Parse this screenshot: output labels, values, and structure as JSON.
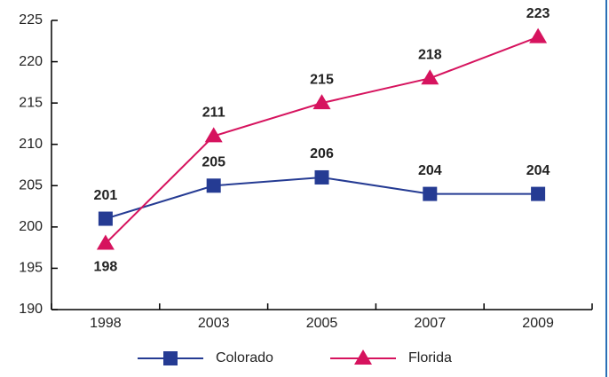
{
  "chart_data": {
    "type": "line",
    "categories": [
      "1998",
      "2003",
      "2005",
      "2007",
      "2009"
    ],
    "series": [
      {
        "name": "Colorado",
        "color": "#253b93",
        "marker": "square",
        "values": [
          201,
          205,
          206,
          204,
          204
        ]
      },
      {
        "name": "Florida",
        "color": "#d6135e",
        "marker": "triangle",
        "values": [
          198,
          211,
          215,
          218,
          223
        ]
      }
    ],
    "ylim": [
      190,
      225
    ],
    "yticks": [
      190,
      195,
      200,
      205,
      210,
      215,
      220,
      225
    ],
    "legend": "bottom",
    "grid": false
  }
}
